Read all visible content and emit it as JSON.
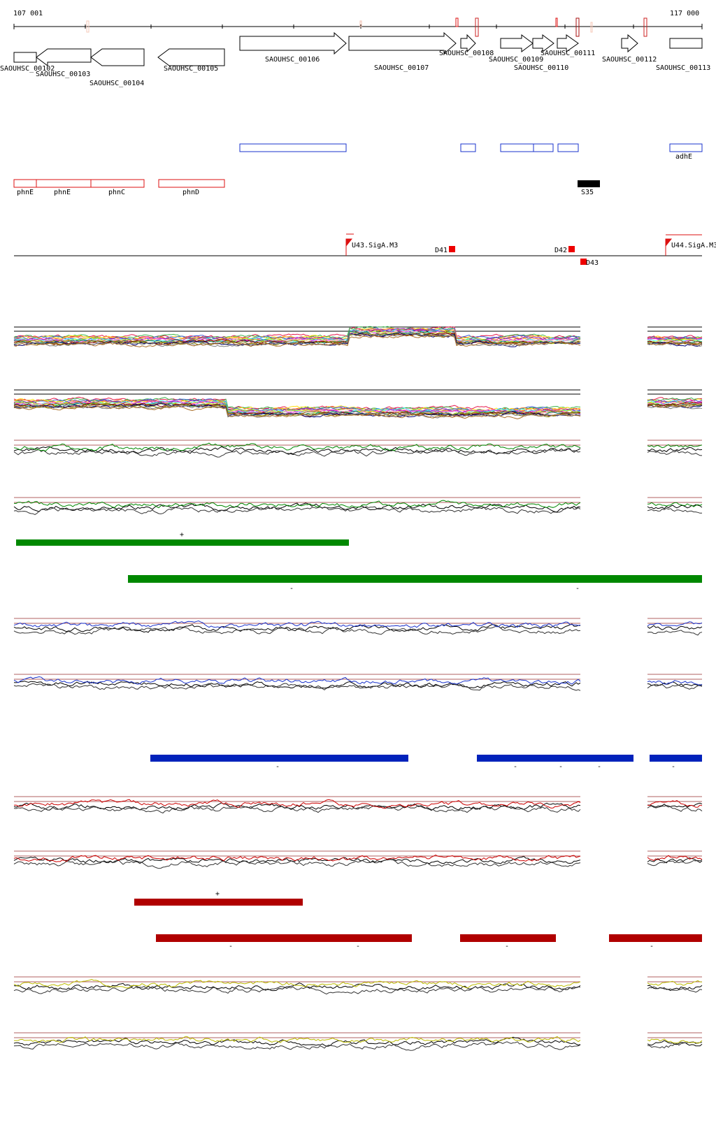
{
  "ruler": {
    "start_label": "107 001",
    "end_label": "117 000"
  },
  "genes": [
    "SAOUHSC_00102",
    "SAOUHSC_00103",
    "SAOUHSC_00104",
    "SAOUHSC_00105",
    "SAOUHSC_00106",
    "SAOUHSC_00107",
    "SAOUHSC_00108",
    "SAOUHSC_00109",
    "SAOUHSC_00110",
    "SAOUHSC_00111",
    "SAOUHSC_00112",
    "SAOUHSC_00113"
  ],
  "annotations": {
    "blue_label": "adhE",
    "red_labels": [
      "phnE",
      "phnE",
      "phnC",
      "phnD"
    ],
    "black_label": "S35"
  },
  "regulatory": {
    "promoters": [
      "U43.SigA.M3",
      "U44.SigA.M3"
    ],
    "terminators": [
      "D41",
      "D42",
      "D43"
    ]
  },
  "segments": {
    "plus_sign": "+",
    "minus_sign": "-"
  },
  "colors": {
    "green": "#008800",
    "blue": "#0022bb",
    "red": "#b00000",
    "yellow": "#cccc00",
    "gene_outline": "#000000",
    "blue_box": "#1a33cc",
    "red_box": "#dd1111"
  }
}
